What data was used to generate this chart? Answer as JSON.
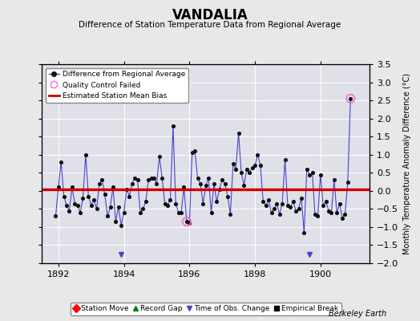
{
  "title": "VANDALIA",
  "subtitle": "Difference of Station Temperature Data from Regional Average",
  "ylabel": "Monthly Temperature Anomaly Difference (°C)",
  "xlabel_credit": "Berkeley Earth",
  "ylim": [
    -2.0,
    3.5
  ],
  "xlim": [
    1891.5,
    1901.5
  ],
  "xticks": [
    1892,
    1894,
    1896,
    1898,
    1900
  ],
  "yticks": [
    -2,
    -1.5,
    -1,
    -0.5,
    0,
    0.5,
    1,
    1.5,
    2,
    2.5,
    3,
    3.5
  ],
  "bias": 0.05,
  "background_color": "#e8e8e8",
  "plot_bg_color": "#e0e0e8",
  "line_color": "#4444cc",
  "dot_color": "#111111",
  "bias_color": "#cc0000",
  "qc_color": "#ff66cc",
  "time_series": [
    [
      1891.917,
      -0.7
    ],
    [
      1892.0,
      0.1
    ],
    [
      1892.083,
      0.8
    ],
    [
      1892.167,
      -0.15
    ],
    [
      1892.25,
      -0.4
    ],
    [
      1892.333,
      -0.55
    ],
    [
      1892.417,
      0.1
    ],
    [
      1892.5,
      -0.35
    ],
    [
      1892.583,
      -0.4
    ],
    [
      1892.667,
      -0.6
    ],
    [
      1892.75,
      -0.2
    ],
    [
      1892.833,
      1.0
    ],
    [
      1892.917,
      -0.15
    ],
    [
      1893.0,
      -0.4
    ],
    [
      1893.083,
      -0.25
    ],
    [
      1893.167,
      -0.5
    ],
    [
      1893.25,
      0.2
    ],
    [
      1893.333,
      0.3
    ],
    [
      1893.417,
      -0.1
    ],
    [
      1893.5,
      -0.7
    ],
    [
      1893.583,
      -0.45
    ],
    [
      1893.667,
      0.1
    ],
    [
      1893.75,
      -0.85
    ],
    [
      1893.833,
      -0.45
    ],
    [
      1893.917,
      -0.95
    ],
    [
      1894.0,
      -0.6
    ],
    [
      1894.083,
      0.05
    ],
    [
      1894.167,
      -0.15
    ],
    [
      1894.25,
      0.2
    ],
    [
      1894.333,
      0.35
    ],
    [
      1894.417,
      0.3
    ],
    [
      1894.5,
      -0.6
    ],
    [
      1894.583,
      -0.5
    ],
    [
      1894.667,
      -0.3
    ],
    [
      1894.75,
      0.3
    ],
    [
      1894.833,
      0.35
    ],
    [
      1894.917,
      0.35
    ],
    [
      1895.0,
      0.2
    ],
    [
      1895.083,
      0.95
    ],
    [
      1895.167,
      0.35
    ],
    [
      1895.25,
      -0.35
    ],
    [
      1895.333,
      -0.4
    ],
    [
      1895.417,
      -0.25
    ],
    [
      1895.5,
      1.8
    ],
    [
      1895.583,
      -0.35
    ],
    [
      1895.667,
      -0.6
    ],
    [
      1895.75,
      -0.6
    ],
    [
      1895.833,
      0.1
    ],
    [
      1895.917,
      -0.85
    ],
    [
      1896.0,
      -0.9
    ],
    [
      1896.083,
      1.05
    ],
    [
      1896.167,
      1.1
    ],
    [
      1896.25,
      0.35
    ],
    [
      1896.333,
      0.2
    ],
    [
      1896.417,
      -0.35
    ],
    [
      1896.5,
      0.15
    ],
    [
      1896.583,
      0.35
    ],
    [
      1896.667,
      -0.6
    ],
    [
      1896.75,
      0.2
    ],
    [
      1896.833,
      -0.3
    ],
    [
      1896.917,
      0.05
    ],
    [
      1897.0,
      0.3
    ],
    [
      1897.083,
      0.2
    ],
    [
      1897.167,
      -0.15
    ],
    [
      1897.25,
      -0.65
    ],
    [
      1897.333,
      0.75
    ],
    [
      1897.417,
      0.6
    ],
    [
      1897.5,
      1.6
    ],
    [
      1897.583,
      0.5
    ],
    [
      1897.667,
      0.15
    ],
    [
      1897.75,
      0.6
    ],
    [
      1897.833,
      0.5
    ],
    [
      1897.917,
      0.65
    ],
    [
      1898.0,
      0.7
    ],
    [
      1898.083,
      1.0
    ],
    [
      1898.167,
      0.7
    ],
    [
      1898.25,
      -0.3
    ],
    [
      1898.333,
      -0.4
    ],
    [
      1898.417,
      -0.25
    ],
    [
      1898.5,
      -0.6
    ],
    [
      1898.583,
      -0.5
    ],
    [
      1898.667,
      -0.35
    ],
    [
      1898.75,
      -0.65
    ],
    [
      1898.833,
      -0.35
    ],
    [
      1898.917,
      0.85
    ],
    [
      1899.0,
      -0.4
    ],
    [
      1899.083,
      -0.45
    ],
    [
      1899.167,
      -0.3
    ],
    [
      1899.25,
      -0.55
    ],
    [
      1899.333,
      -0.5
    ],
    [
      1899.417,
      -0.2
    ],
    [
      1899.5,
      -1.15
    ],
    [
      1899.583,
      0.6
    ],
    [
      1899.667,
      0.45
    ],
    [
      1899.75,
      0.5
    ],
    [
      1899.833,
      -0.65
    ],
    [
      1899.917,
      -0.7
    ],
    [
      1900.0,
      0.45
    ],
    [
      1900.083,
      -0.4
    ],
    [
      1900.167,
      -0.3
    ],
    [
      1900.25,
      -0.55
    ],
    [
      1900.333,
      -0.6
    ],
    [
      1900.417,
      0.3
    ],
    [
      1900.5,
      -0.6
    ],
    [
      1900.583,
      -0.35
    ],
    [
      1900.667,
      -0.75
    ],
    [
      1900.75,
      -0.65
    ],
    [
      1900.833,
      0.25
    ],
    [
      1900.917,
      2.55
    ]
  ],
  "qc_failed_points": [
    [
      1895.917,
      -0.85
    ],
    [
      1900.917,
      2.55
    ]
  ],
  "time_of_obs_changes": [
    1893.917,
    1899.667
  ]
}
